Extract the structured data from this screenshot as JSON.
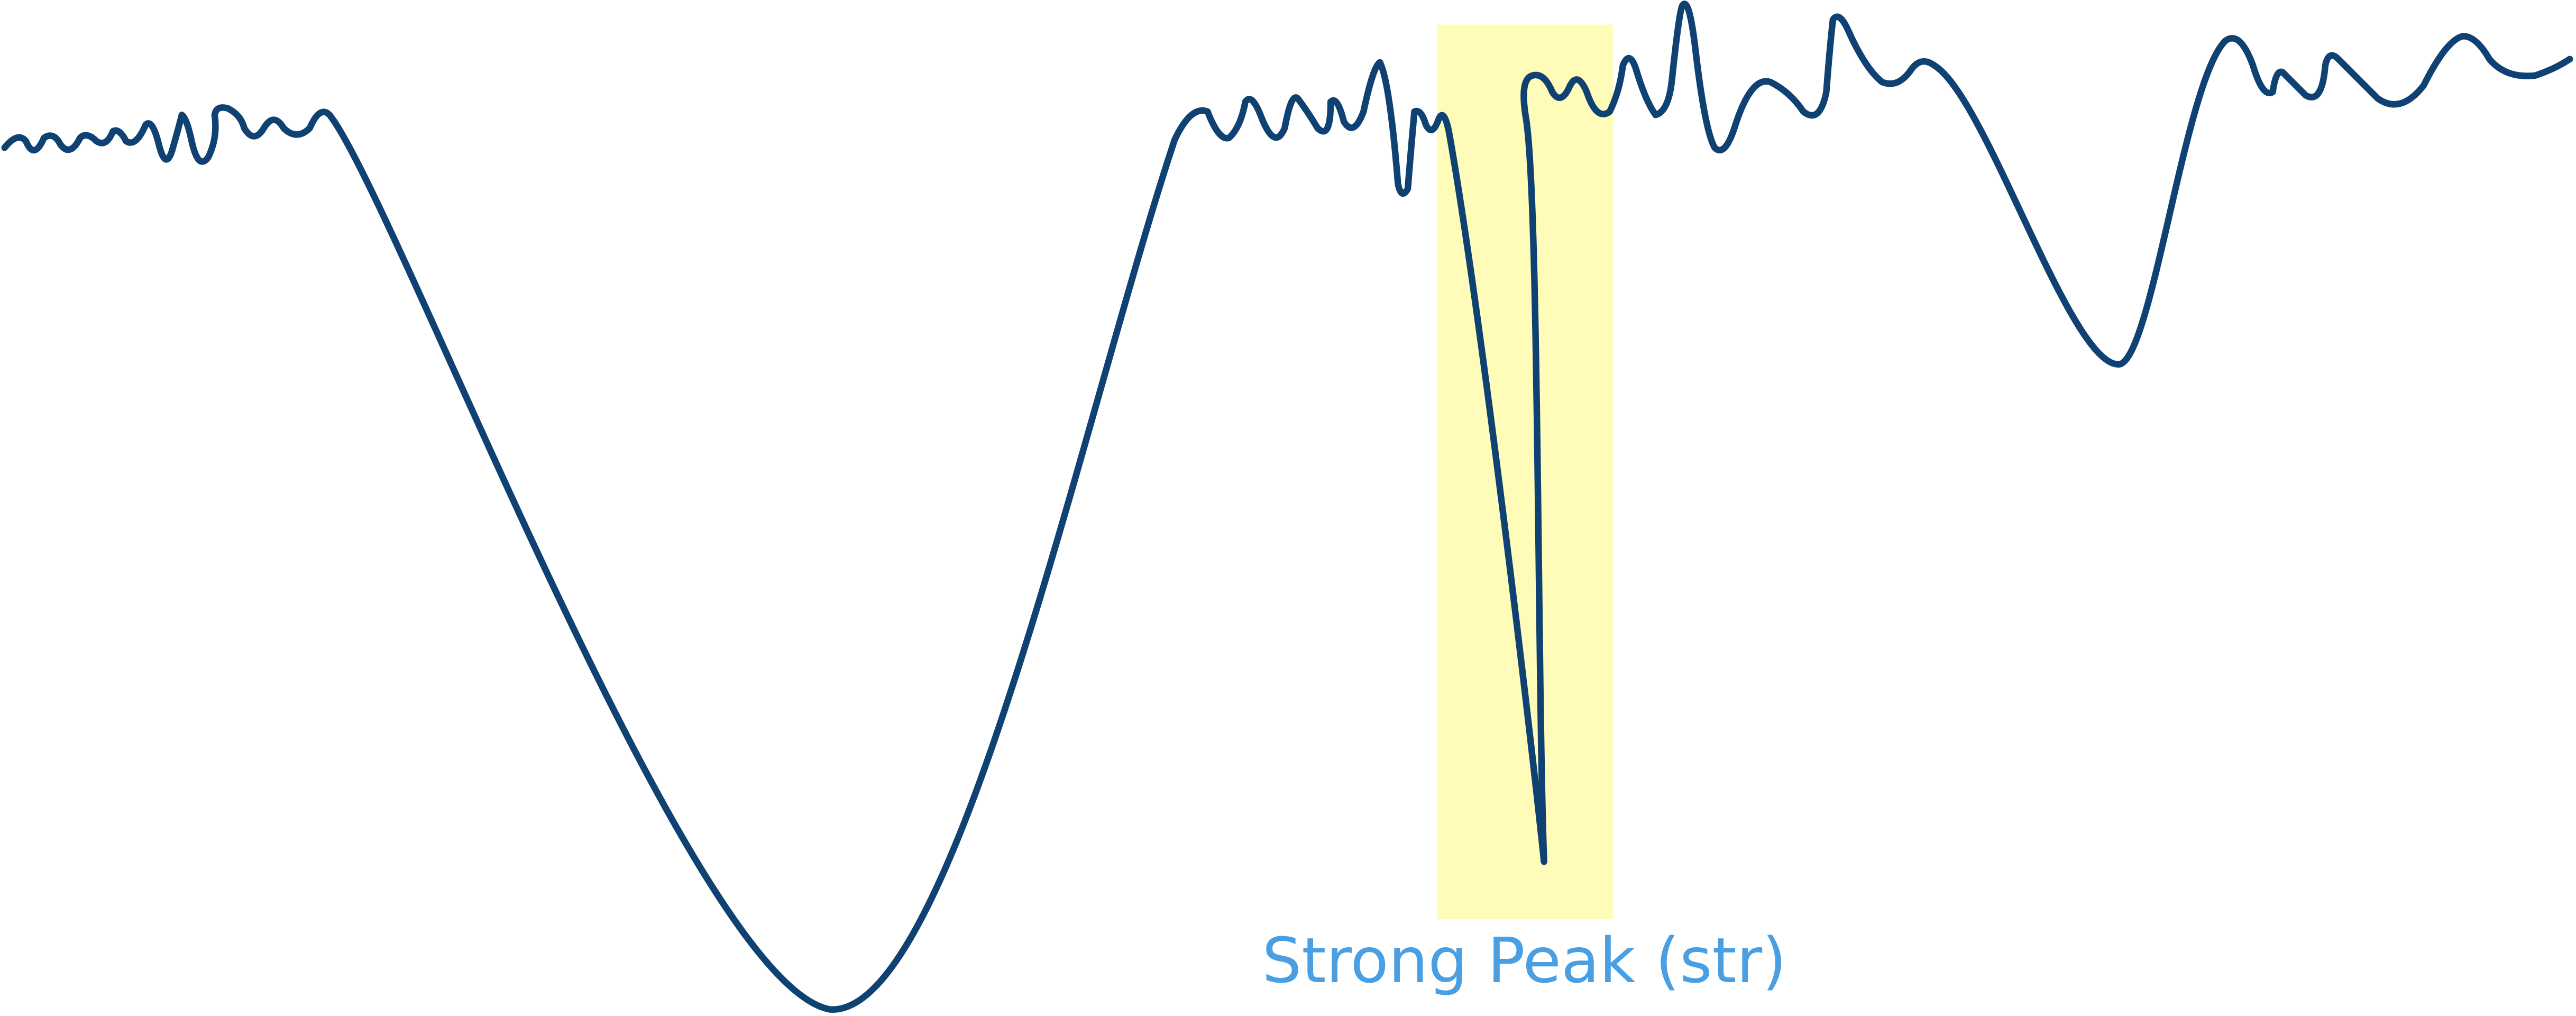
{
  "annotation": {
    "label": "Strong Peak (str)"
  }
}
